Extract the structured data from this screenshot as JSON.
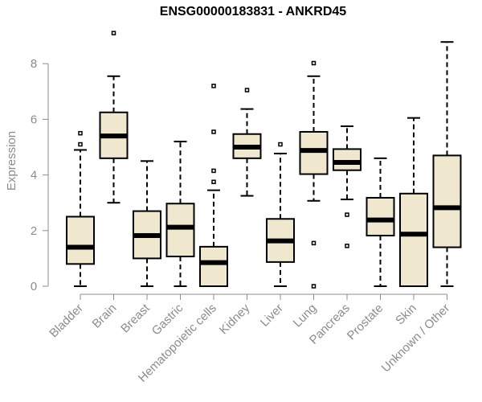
{
  "chart_data": {
    "type": "box",
    "title": "ENSG00000183831 - ANKRD45",
    "ylabel": "Expression",
    "xlabel": "",
    "ylim": [
      0,
      9.2
    ],
    "yticks": [
      0,
      2,
      4,
      6,
      8
    ],
    "grid": false,
    "colors": {
      "box_fill": "#efe8cf",
      "stroke": "#000000",
      "axis": "#8c8c8c"
    },
    "categories": [
      "Bladder",
      "Brain",
      "Breast",
      "Gastric",
      "Hematopoietic cells",
      "Kidney",
      "Liver",
      "Lung",
      "Pancreas",
      "Prostate",
      "Skin",
      "Unknown / Other"
    ],
    "boxes": [
      {
        "min": 0,
        "q1": 0.8,
        "median": 1.4,
        "q3": 2.5,
        "max": 4.9,
        "outliers": [
          5.1,
          5.5
        ]
      },
      {
        "min": 3.0,
        "q1": 4.6,
        "median": 5.4,
        "q3": 6.25,
        "max": 7.55,
        "outliers": [
          9.1
        ]
      },
      {
        "min": 0,
        "q1": 1.0,
        "median": 1.82,
        "q3": 2.7,
        "max": 4.5,
        "outliers": []
      },
      {
        "min": 0,
        "q1": 1.07,
        "median": 2.12,
        "q3": 2.97,
        "max": 5.2,
        "outliers": []
      },
      {
        "min": 0,
        "q1": 0,
        "median": 0.85,
        "q3": 1.42,
        "max": 3.45,
        "outliers": [
          3.75,
          4.15,
          5.55,
          7.2
        ]
      },
      {
        "min": 3.25,
        "q1": 4.6,
        "median": 5.0,
        "q3": 5.47,
        "max": 6.37,
        "outliers": [
          7.05
        ]
      },
      {
        "min": 0,
        "q1": 0.87,
        "median": 1.63,
        "q3": 2.42,
        "max": 4.77,
        "outliers": [
          5.1
        ]
      },
      {
        "min": 3.07,
        "q1": 4.03,
        "median": 4.88,
        "q3": 5.55,
        "max": 7.55,
        "outliers": [
          0,
          1.55,
          8.02
        ]
      },
      {
        "min": 3.12,
        "q1": 4.17,
        "median": 4.45,
        "q3": 4.93,
        "max": 5.75,
        "outliers": [
          1.45,
          2.57
        ]
      },
      {
        "min": 0,
        "q1": 1.82,
        "median": 2.38,
        "q3": 3.18,
        "max": 4.6,
        "outliers": []
      },
      {
        "min": 0,
        "q1": 0,
        "median": 1.87,
        "q3": 3.33,
        "max": 6.05,
        "outliers": []
      },
      {
        "min": 0,
        "q1": 1.4,
        "median": 2.82,
        "q3": 4.7,
        "max": 8.78,
        "outliers": []
      }
    ]
  }
}
